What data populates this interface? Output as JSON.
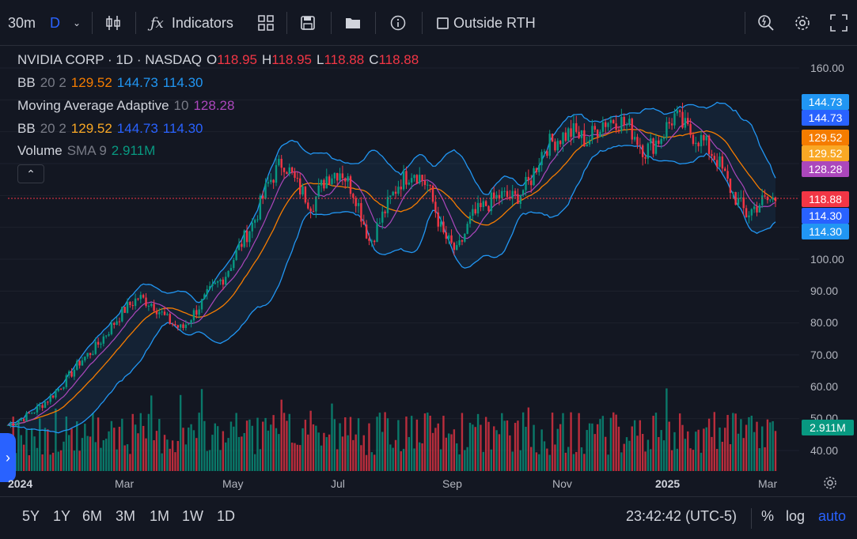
{
  "toolbar": {
    "interval": "30m",
    "interval_alt": "D",
    "indicators_label": "Indicators",
    "outside_rth_label": "Outside RTH"
  },
  "legend": {
    "symbol": "NVIDIA CORP · 1D · NASDAQ",
    "o_label": "O",
    "o": "118.95",
    "h_label": "H",
    "h": "118.95",
    "l_label": "L",
    "l": "118.88",
    "c_label": "C",
    "c": "118.88",
    "bb1": {
      "name": "BB",
      "params": "20 2",
      "basis": "129.52",
      "upper": "144.73",
      "lower": "114.30"
    },
    "maa": {
      "name": "Moving Average Adaptive",
      "params": "10",
      "value": "128.28"
    },
    "bb2": {
      "name": "BB",
      "params": "20 2",
      "basis": "129.52",
      "upper": "144.73",
      "lower": "114.30"
    },
    "vol": {
      "name": "Volume",
      "params": "SMA 9",
      "value": "2.911M"
    }
  },
  "price_labels": [
    {
      "value": "144.73",
      "color": "#2196f3"
    },
    {
      "value": "144.73",
      "color": "#2962ff"
    },
    {
      "value": "129.52",
      "color": "#f57c00"
    },
    {
      "value": "129.52",
      "color": "#f9a825"
    },
    {
      "value": "128.28",
      "color": "#ab47bc"
    },
    {
      "value": "118.88",
      "color": "#f23645"
    },
    {
      "value": "114.30",
      "color": "#2962ff"
    },
    {
      "value": "114.30",
      "color": "#2196f3"
    },
    {
      "value": "2.911M",
      "color": "#089981"
    }
  ],
  "y_ticks": [
    "160.00",
    "100.00",
    "90.00",
    "80.00",
    "70.00",
    "60.00",
    "50.00",
    "40.00"
  ],
  "x_ticks": [
    "2024",
    "Mar",
    "May",
    "Jul",
    "Sep",
    "Nov",
    "2025",
    "Mar"
  ],
  "ranges": [
    "5Y",
    "1Y",
    "6M",
    "3M",
    "1M",
    "1W",
    "1D"
  ],
  "clock": "23:42:42 (UTC-5)",
  "scale_opts": {
    "pct": "%",
    "log": "log",
    "auto": "auto"
  },
  "colors": {
    "up": "#089981",
    "down": "#f23645",
    "bb": "#2196f3",
    "basis": "#f57c00",
    "maa": "#ab47bc",
    "accent": "#2962ff"
  },
  "chart_data": {
    "type": "candlestick",
    "symbol": "NVIDIA CORP",
    "close_series_approx": [
      48,
      50,
      53,
      57,
      62,
      68,
      72,
      78,
      84,
      88,
      86,
      81,
      78,
      84,
      90,
      95,
      104,
      112,
      124,
      131,
      123,
      117,
      126,
      128,
      120,
      105,
      115,
      124,
      128,
      123,
      108,
      102,
      113,
      117,
      120,
      119,
      124,
      135,
      138,
      140,
      137,
      143,
      144,
      141,
      134,
      138,
      145,
      140,
      137,
      131,
      121,
      114,
      118,
      118.88
    ],
    "ylim": [
      38,
      168
    ]
  }
}
